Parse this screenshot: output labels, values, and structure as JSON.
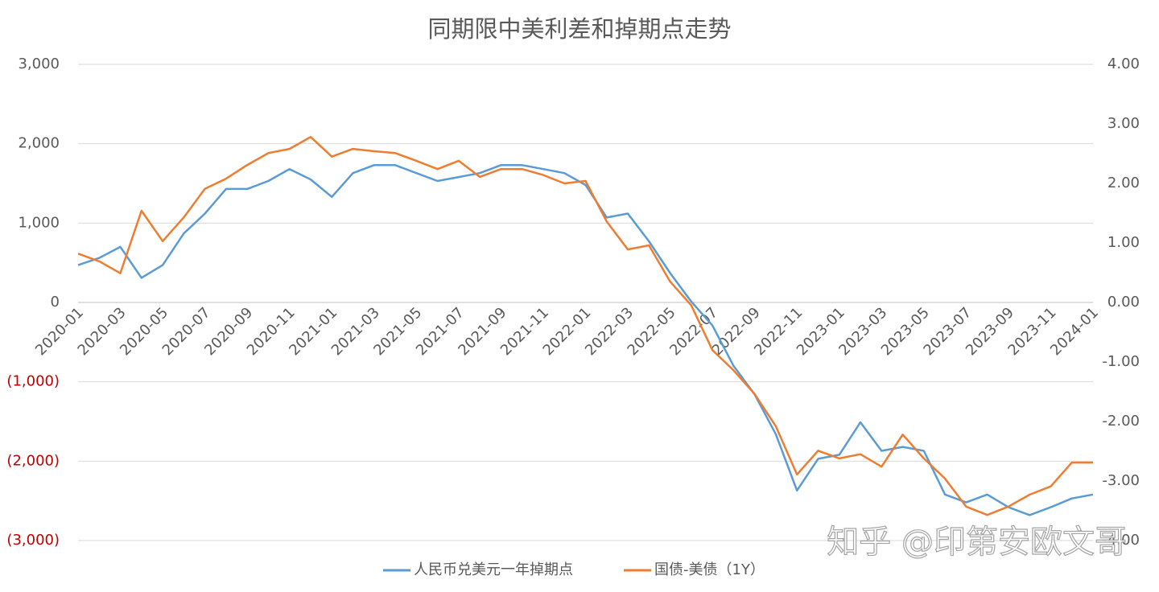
{
  "chart_data": {
    "type": "line",
    "title": "同期限中美利差和掉期点走势",
    "watermark": "知乎 @印第安欧文哥",
    "categories": [
      "2020-01",
      null,
      "2020-03",
      null,
      "2020-05",
      null,
      "2020-07",
      null,
      "2020-09",
      null,
      "2020-11",
      null,
      "2021-01",
      null,
      "2021-03",
      null,
      "2021-05",
      null,
      "2021-07",
      null,
      "2021-09",
      null,
      "2021-11",
      null,
      "2022-01",
      null,
      "2022-03",
      null,
      "2022-05",
      null,
      "2022-07",
      null,
      "2022-09",
      null,
      "2022-11",
      null,
      "2023-01",
      null,
      "2023-03",
      null,
      "2023-05",
      null,
      "2023-07",
      null,
      "2023-09",
      null,
      "2023-11",
      null,
      "2024-01"
    ],
    "series": [
      {
        "name": "人民币兑美元一年掉期点",
        "color": "#5b9bd5",
        "axis": "y",
        "values": [
          470,
          560,
          700,
          310,
          470,
          870,
          1120,
          1430,
          1430,
          1530,
          1680,
          1550,
          1330,
          1630,
          1730,
          1730,
          1630,
          1530,
          1580,
          1630,
          1730,
          1730,
          1680,
          1630,
          1480,
          1070,
          1120,
          770,
          370,
          10,
          -290,
          -800,
          -1160,
          -1660,
          -2370,
          -1970,
          -1920,
          -1510,
          -1870,
          -1820,
          -1870,
          -2420,
          -2520,
          -2420,
          -2580,
          -2680,
          -2580,
          -2470,
          -2420
        ]
      },
      {
        "name": "国债-美债（1Y）",
        "color": "#ed7d31",
        "axis": "y2",
        "values": [
          0.82,
          0.69,
          0.49,
          1.54,
          1.03,
          1.43,
          1.91,
          2.08,
          2.31,
          2.51,
          2.58,
          2.78,
          2.45,
          2.58,
          2.54,
          2.51,
          2.38,
          2.24,
          2.38,
          2.11,
          2.24,
          2.24,
          2.14,
          2.0,
          2.04,
          1.36,
          0.89,
          0.96,
          0.35,
          -0.05,
          -0.8,
          -1.14,
          -1.54,
          -2.08,
          -2.89,
          -2.49,
          -2.62,
          -2.55,
          -2.76,
          -2.22,
          -2.62,
          -2.96,
          -3.43,
          -3.57,
          -3.43,
          -3.23,
          -3.09,
          -2.69,
          -2.69
        ]
      }
    ],
    "ylim": [
      -3000,
      3000
    ],
    "yticks": [
      {
        "value": 3000,
        "label": "3,000"
      },
      {
        "value": 2000,
        "label": "2,000"
      },
      {
        "value": 1000,
        "label": "1,000"
      },
      0,
      {
        "value": -1000,
        "label": "(1,000)"
      },
      {
        "value": -2000,
        "label": "(2,000)"
      },
      {
        "value": -3000,
        "label": "(3,000)"
      }
    ],
    "negative_tick_color": "#c00000",
    "y2lim": [
      -4,
      4
    ],
    "y2ticks": [
      {
        "value": 4,
        "label": "4.00"
      },
      {
        "value": 3,
        "label": "3.00"
      },
      {
        "value": 2,
        "label": "2.00"
      },
      {
        "value": 1,
        "label": "1.00"
      },
      {
        "value": 0,
        "label": "0.00"
      },
      {
        "value": -1,
        "label": "-1.00"
      },
      {
        "value": -2,
        "label": "-2.00"
      },
      {
        "value": -3,
        "label": "-3.00"
      },
      {
        "value": -4,
        "label": "-4.00"
      }
    ],
    "grid": true,
    "legend": "bottom"
  }
}
